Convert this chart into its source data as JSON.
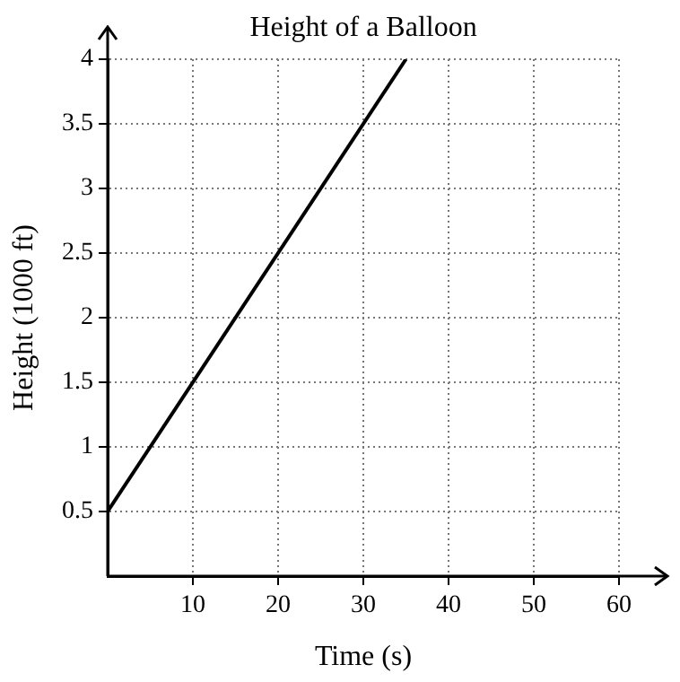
{
  "chart_data": {
    "type": "line",
    "title": "Height of a Balloon",
    "xlabel": "Time (s)",
    "ylabel": "Height (1000 ft)",
    "x": [
      0,
      35
    ],
    "series": [
      {
        "color": "#000000",
        "values": [
          0.5,
          4
        ]
      }
    ],
    "xlim": [
      0,
      60
    ],
    "ylim": [
      0,
      4
    ],
    "xticks": [
      10,
      20,
      30,
      40,
      50,
      60
    ],
    "yticks": [
      0.5,
      1,
      1.5,
      2,
      2.5,
      3,
      3.5,
      4
    ],
    "grid": true,
    "marker": "none",
    "line_style": "solid",
    "legend": false
  }
}
